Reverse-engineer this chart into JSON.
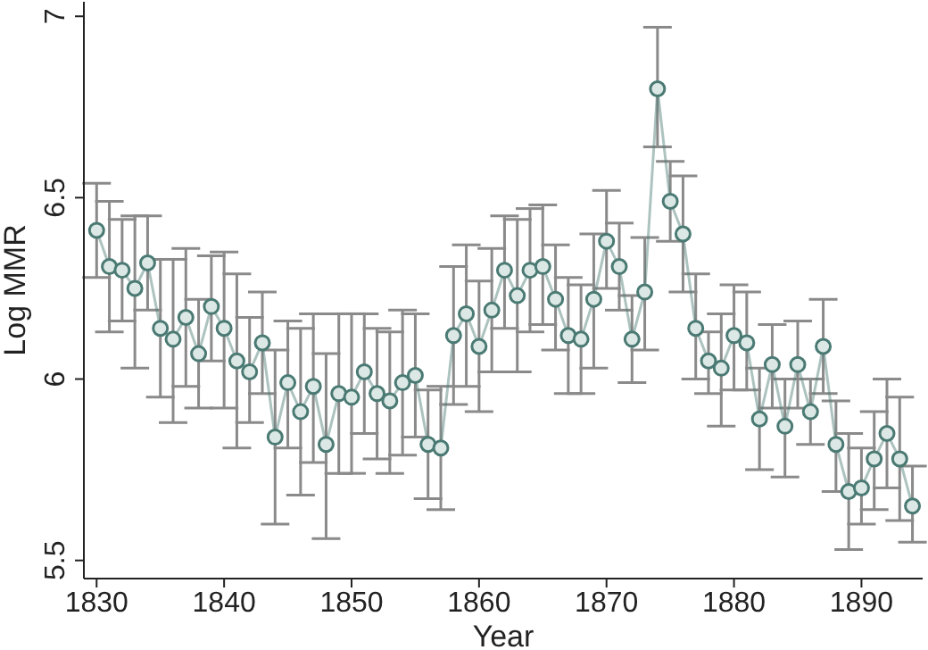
{
  "chart_data": {
    "type": "line",
    "xlabel": "Year",
    "ylabel": "Log MMR",
    "x": [
      1830,
      1831,
      1832,
      1833,
      1834,
      1835,
      1836,
      1837,
      1838,
      1839,
      1840,
      1841,
      1842,
      1843,
      1844,
      1845,
      1846,
      1847,
      1848,
      1849,
      1850,
      1851,
      1852,
      1853,
      1854,
      1855,
      1856,
      1857,
      1858,
      1859,
      1860,
      1861,
      1862,
      1863,
      1864,
      1865,
      1866,
      1867,
      1868,
      1869,
      1870,
      1871,
      1872,
      1873,
      1874,
      1875,
      1876,
      1877,
      1878,
      1879,
      1880,
      1881,
      1882,
      1883,
      1884,
      1885,
      1886,
      1887,
      1888,
      1889,
      1890,
      1891,
      1892,
      1893,
      1894
    ],
    "series": [
      {
        "color": "#4a7a73",
        "values": [
          6.41,
          6.31,
          6.3,
          6.25,
          6.32,
          6.14,
          6.11,
          6.17,
          6.07,
          6.2,
          6.14,
          6.05,
          6.02,
          6.1,
          5.84,
          5.99,
          5.91,
          5.98,
          5.82,
          5.96,
          5.95,
          6.02,
          5.96,
          5.94,
          5.99,
          6.01,
          5.82,
          5.81,
          6.12,
          6.18,
          6.09,
          6.19,
          6.3,
          6.23,
          6.3,
          6.31,
          6.22,
          6.12,
          6.11,
          6.22,
          6.38,
          6.31,
          6.11,
          6.24,
          6.8,
          6.49,
          6.4,
          6.14,
          6.05,
          6.03,
          6.12,
          6.1,
          5.89,
          6.04,
          5.87,
          6.04,
          5.91,
          6.09,
          5.82,
          5.69,
          5.7,
          5.78,
          5.85,
          5.78,
          5.65
        ],
        "errors": [
          [
            6.28,
            6.54
          ],
          [
            6.13,
            6.49
          ],
          [
            6.16,
            6.44
          ],
          [
            6.03,
            6.45
          ],
          [
            6.19,
            6.45
          ],
          [
            5.95,
            6.33
          ],
          [
            5.88,
            6.33
          ],
          [
            5.98,
            6.36
          ],
          [
            5.92,
            6.22
          ],
          [
            6.05,
            6.34
          ],
          [
            5.92,
            6.35
          ],
          [
            5.81,
            6.29
          ],
          [
            5.88,
            6.17
          ],
          [
            5.96,
            6.24
          ],
          [
            5.6,
            6.08
          ],
          [
            5.81,
            6.16
          ],
          [
            5.68,
            6.14
          ],
          [
            5.77,
            6.18
          ],
          [
            5.56,
            6.07
          ],
          [
            5.74,
            6.18
          ],
          [
            5.74,
            6.18
          ],
          [
            5.85,
            6.18
          ],
          [
            5.78,
            6.14
          ],
          [
            5.74,
            6.13
          ],
          [
            5.79,
            6.19
          ],
          [
            5.84,
            6.18
          ],
          [
            5.67,
            5.97
          ],
          [
            5.64,
            5.98
          ],
          [
            5.93,
            6.31
          ],
          [
            5.98,
            6.37
          ],
          [
            5.91,
            6.27
          ],
          [
            6.02,
            6.36
          ],
          [
            6.14,
            6.45
          ],
          [
            6.02,
            6.44
          ],
          [
            6.13,
            6.47
          ],
          [
            6.15,
            6.48
          ],
          [
            6.08,
            6.37
          ],
          [
            5.96,
            6.28
          ],
          [
            5.96,
            6.26
          ],
          [
            6.03,
            6.4
          ],
          [
            6.25,
            6.52
          ],
          [
            6.19,
            6.43
          ],
          [
            5.99,
            6.23
          ],
          [
            6.08,
            6.39
          ],
          [
            6.64,
            6.97
          ],
          [
            6.38,
            6.6
          ],
          [
            6.24,
            6.56
          ],
          [
            6.0,
            6.29
          ],
          [
            5.96,
            6.13
          ],
          [
            5.87,
            6.18
          ],
          [
            5.97,
            6.26
          ],
          [
            5.97,
            6.24
          ],
          [
            5.75,
            6.03
          ],
          [
            5.92,
            6.15
          ],
          [
            5.73,
            6.0
          ],
          [
            5.92,
            6.16
          ],
          [
            5.82,
            6.0
          ],
          [
            5.96,
            6.22
          ],
          [
            5.69,
            5.94
          ],
          [
            5.53,
            5.85
          ],
          [
            5.6,
            5.81
          ],
          [
            5.64,
            5.91
          ],
          [
            5.7,
            6.0
          ],
          [
            5.61,
            5.95
          ],
          [
            5.55,
            5.76
          ]
        ]
      }
    ],
    "xlim": [
      1829,
      1894.8
    ],
    "xticks": [
      1830,
      1840,
      1850,
      1860,
      1870,
      1880,
      1890
    ],
    "ylim": [
      5.45,
      7.04
    ],
    "yticks": [
      5.5,
      6,
      6.5,
      7
    ],
    "marker": "circle",
    "grid": false
  }
}
